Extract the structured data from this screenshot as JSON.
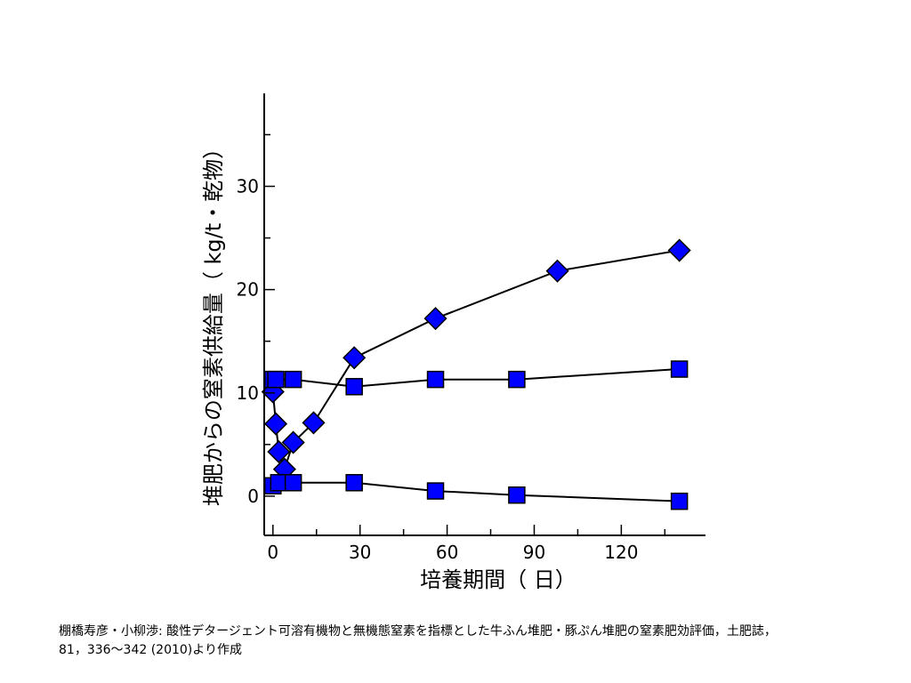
{
  "chart_data": {
    "type": "scatter",
    "xlabel": "培養期間（ 日）",
    "ylabel": "堆肥からの窒素供給量（ kg/t・乾物）",
    "xlim": [
      -3,
      149
    ],
    "ylim": [
      -3.8,
      39
    ],
    "xticks": [
      0,
      30,
      60,
      90,
      120
    ],
    "yticks": [
      0,
      10,
      20,
      30
    ],
    "x_minor_step": 15,
    "y_minor_step": 5,
    "grid": false,
    "lines": true,
    "series": [
      {
        "marker": "diamond",
        "x": [
          0,
          1,
          2,
          4,
          7,
          14,
          28,
          56,
          98,
          140
        ],
        "y": [
          10.1,
          7.0,
          4.3,
          2.6,
          5.2,
          7.1,
          13.4,
          17.2,
          21.8,
          23.8
        ]
      },
      {
        "marker": "square",
        "x": [
          0,
          1,
          7,
          28,
          56,
          84,
          140
        ],
        "y": [
          11.3,
          11.3,
          11.3,
          10.6,
          11.3,
          11.3,
          12.3
        ]
      },
      {
        "marker": "square",
        "x": [
          0,
          2,
          7,
          28,
          56,
          84,
          140
        ],
        "y": [
          1.0,
          1.3,
          1.3,
          1.3,
          0.5,
          0.1,
          -0.5
        ]
      }
    ],
    "colors": {
      "marker_fill": "#0000FF",
      "marker_stroke": "#000000",
      "line": "#000000"
    }
  },
  "caption": {
    "line1": "棚橋寿彦・小柳渉: 酸性デタージェント可溶有機物と無機態窒素を指標とした牛ふん堆肥・豚ぷん堆肥の窒素肥効評価，土肥誌，",
    "line2": "81，336～342 (2010)より作成"
  }
}
